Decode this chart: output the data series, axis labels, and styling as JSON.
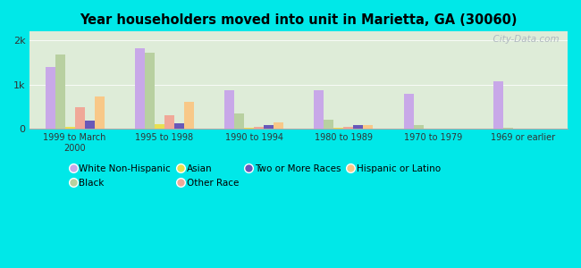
{
  "title": "Year householders moved into unit in Marietta, GA (30060)",
  "categories": [
    "1999 to March\n2000",
    "1995 to 1998",
    "1990 to 1994",
    "1980 to 1989",
    "1970 to 1979",
    "1969 or earlier"
  ],
  "series_order": [
    "White Non-Hispanic",
    "Black",
    "Asian",
    "Other Race",
    "Two or More Races",
    "Hispanic or Latino"
  ],
  "series": {
    "White Non-Hispanic": [
      1400,
      1820,
      870,
      870,
      790,
      1080
    ],
    "Black": [
      1680,
      1720,
      350,
      200,
      80,
      15
    ],
    "Asian": [
      40,
      110,
      15,
      15,
      5,
      5
    ],
    "Other Race": [
      480,
      310,
      50,
      35,
      10,
      10
    ],
    "Two or More Races": [
      190,
      130,
      75,
      75,
      8,
      8
    ],
    "Hispanic or Latino": [
      730,
      620,
      140,
      75,
      10,
      8
    ]
  },
  "colors": {
    "White Non-Hispanic": "#c8a8e8",
    "Black": "#b8d0a0",
    "Asian": "#e8e050",
    "Other Race": "#f0a898",
    "Two or More Races": "#6858b8",
    "Hispanic or Latino": "#f8c888"
  },
  "ylim": [
    0,
    2200
  ],
  "yticks": [
    0,
    1000,
    2000
  ],
  "ytick_labels": [
    "0",
    "1k",
    "2k"
  ],
  "background_color": "#00e8e8",
  "plot_bg_color": "#deecd8",
  "watermark": "  City-Data.com",
  "legend_row1": [
    "White Non-Hispanic",
    "Black",
    "Asian",
    "Other Race"
  ],
  "legend_row2": [
    "Two or More Races",
    "Hispanic or Latino"
  ]
}
